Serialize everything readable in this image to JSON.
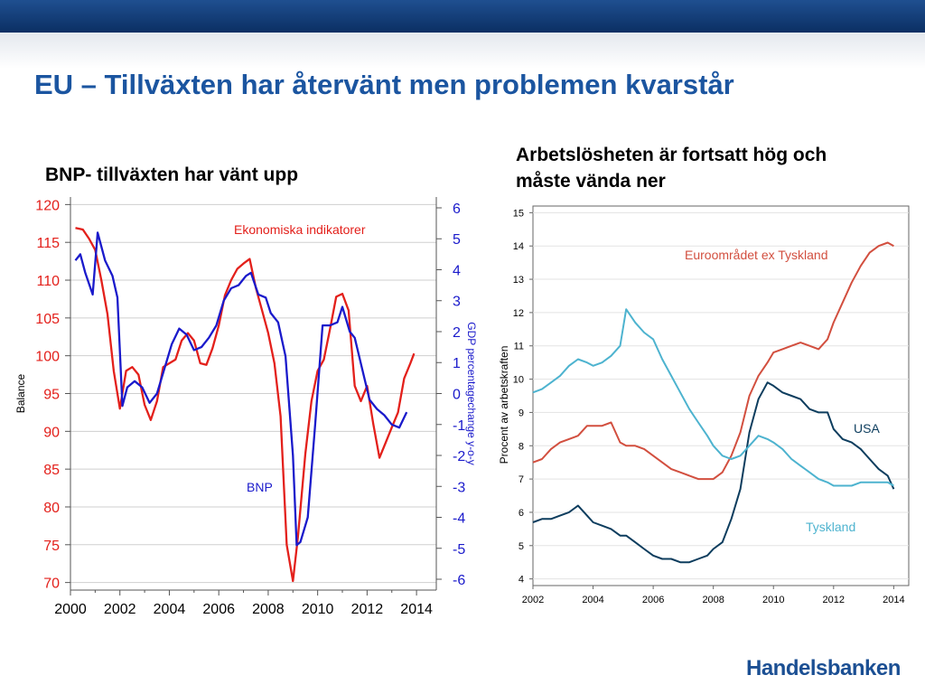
{
  "slide": {
    "title": "EU – Tillväxten har återvänt men problemen kvarstår",
    "logo": "Handelsbanken",
    "colors": {
      "header_bar": "#0b2f63",
      "title": "#1b55a0"
    }
  },
  "left": {
    "subtitle": "BNP- tillväxten har vänt upp"
  },
  "right": {
    "subtitle_lines": [
      "Arbetslösheten är fortsatt hög och",
      "måste vända ner"
    ]
  },
  "chart_data": [
    {
      "type": "line",
      "title": "BNP- tillväxten har vänt upp",
      "ylabel": "Balance",
      "y2label": "GDP percentagechange y-o-y",
      "xlim": [
        2000,
        2014.8
      ],
      "ylim": [
        69,
        121
      ],
      "y2lim": [
        -6.35,
        6.35
      ],
      "x_ticks": [
        "2000",
        "2002",
        "2004",
        "2006",
        "2008",
        "2010",
        "2012",
        "2014"
      ],
      "y_ticks": [
        "120",
        "115",
        "110",
        "105",
        "100",
        "95",
        "90",
        "85",
        "80",
        "75",
        "70"
      ],
      "y2_ticks": [
        "6",
        "5",
        "4",
        "3",
        "2",
        "1",
        "0",
        "-1",
        "-2",
        "-3",
        "-4",
        "-5",
        "-6"
      ],
      "grid": true,
      "series": [
        {
          "name": "Ekonomiska indikatorer",
          "axis": "left",
          "color": "#e3201b",
          "x": [
            2000.2,
            2000.5,
            2000.75,
            2001.0,
            2001.25,
            2001.5,
            2001.75,
            2002.0,
            2002.25,
            2002.5,
            2002.75,
            2003.0,
            2003.25,
            2003.5,
            2003.75,
            2004.0,
            2004.25,
            2004.5,
            2004.75,
            2005.0,
            2005.25,
            2005.5,
            2005.75,
            2006.0,
            2006.25,
            2006.5,
            2006.75,
            2007.0,
            2007.25,
            2007.5,
            2007.75,
            2008.0,
            2008.25,
            2008.5,
            2008.75,
            2009.0,
            2009.2,
            2009.5,
            2009.75,
            2010.0,
            2010.25,
            2010.5,
            2010.75,
            2011.0,
            2011.25,
            2011.5,
            2011.75,
            2012.0,
            2012.25,
            2012.5,
            2012.75,
            2013.0,
            2013.25,
            2013.5,
            2013.75,
            2013.9
          ],
          "values": [
            116.9,
            116.7,
            115.5,
            114,
            110,
            105.5,
            98,
            93,
            98,
            98.5,
            97.5,
            93.5,
            91.5,
            94,
            98.5,
            99,
            99.5,
            102,
            103,
            102,
            99,
            98.8,
            101,
            104,
            108,
            110,
            111.5,
            112.2,
            112.8,
            109,
            106,
            103,
            99,
            92,
            75,
            70.2,
            76,
            87,
            94,
            98,
            99.5,
            103.5,
            107.8,
            108.2,
            106,
            96,
            94,
            96,
            91,
            86.5,
            88.5,
            90.5,
            92.5,
            97,
            99,
            100.3
          ]
        },
        {
          "name": "BNP",
          "axis": "right",
          "color": "#1a1acb",
          "x": [
            2000.2,
            2000.4,
            2000.6,
            2000.9,
            2001.1,
            2001.4,
            2001.7,
            2001.9,
            2002.1,
            2002.3,
            2002.6,
            2002.9,
            2003.2,
            2003.5,
            2003.8,
            2004.1,
            2004.4,
            2004.7,
            2005.0,
            2005.3,
            2005.6,
            2005.9,
            2006.2,
            2006.5,
            2006.8,
            2007.1,
            2007.3,
            2007.6,
            2007.9,
            2008.1,
            2008.4,
            2008.7,
            2009.0,
            2009.15,
            2009.3,
            2009.6,
            2009.9,
            2010.2,
            2010.5,
            2010.8,
            2011.0,
            2011.3,
            2011.5,
            2011.8,
            2012.1,
            2012.4,
            2012.7,
            2013.0,
            2013.3,
            2013.6
          ],
          "values": [
            4.3,
            4.5,
            3.9,
            3.2,
            5.2,
            4.3,
            3.8,
            3.1,
            -0.4,
            0.2,
            0.4,
            0.2,
            -0.3,
            0.0,
            0.8,
            1.6,
            2.1,
            1.9,
            1.4,
            1.5,
            1.8,
            2.2,
            3.0,
            3.4,
            3.5,
            3.8,
            3.9,
            3.2,
            3.1,
            2.6,
            2.3,
            1.2,
            -2.0,
            -4.9,
            -4.8,
            -4.0,
            -1.0,
            2.2,
            2.2,
            2.3,
            2.8,
            2.0,
            1.8,
            0.8,
            -0.2,
            -0.5,
            -0.7,
            -1.0,
            -1.1,
            -0.6
          ]
        }
      ]
    },
    {
      "type": "line",
      "title": "Arbetslösheten är fortsatt hög och måste vända ner",
      "ylabel": "Procent av arbetskraften",
      "xlim": [
        2002,
        2014.5
      ],
      "ylim": [
        3.8,
        15.2
      ],
      "x_ticks": [
        "2002",
        "2004",
        "2006",
        "2008",
        "2010",
        "2012",
        "2014"
      ],
      "y_ticks": [
        "15",
        "14",
        "13",
        "12",
        "11",
        "10",
        "9",
        "8",
        "7",
        "6",
        "5",
        "4"
      ],
      "grid": true,
      "series": [
        {
          "name": "Euroområdet ex Tyskland",
          "color": "#d24f3f",
          "x": [
            2002.0,
            2002.3,
            2002.6,
            2002.9,
            2003.2,
            2003.5,
            2003.8,
            2004.0,
            2004.3,
            2004.6,
            2004.9,
            2005.1,
            2005.4,
            2005.7,
            2006.0,
            2006.3,
            2006.6,
            2006.9,
            2007.2,
            2007.5,
            2007.8,
            2008.0,
            2008.3,
            2008.6,
            2008.9,
            2009.2,
            2009.5,
            2009.8,
            2010.0,
            2010.3,
            2010.6,
            2010.9,
            2011.2,
            2011.5,
            2011.8,
            2012.0,
            2012.3,
            2012.6,
            2012.9,
            2013.2,
            2013.5,
            2013.8,
            2014.0
          ],
          "values": [
            7.5,
            7.6,
            7.9,
            8.1,
            8.2,
            8.3,
            8.6,
            8.6,
            8.6,
            8.7,
            8.1,
            8.0,
            8.0,
            7.9,
            7.7,
            7.5,
            7.3,
            7.2,
            7.1,
            7.0,
            7.0,
            7.0,
            7.2,
            7.7,
            8.4,
            9.5,
            10.1,
            10.5,
            10.8,
            10.9,
            11.0,
            11.1,
            11.0,
            10.9,
            11.2,
            11.7,
            12.3,
            12.9,
            13.4,
            13.8,
            14.0,
            14.1,
            14.0
          ]
        },
        {
          "name": "USA",
          "color": "#0d3d5e",
          "x": [
            2002.0,
            2002.3,
            2002.6,
            2002.9,
            2003.2,
            2003.5,
            2003.8,
            2004.0,
            2004.3,
            2004.6,
            2004.9,
            2005.1,
            2005.4,
            2005.7,
            2006.0,
            2006.3,
            2006.6,
            2006.9,
            2007.2,
            2007.5,
            2007.8,
            2008.0,
            2008.3,
            2008.6,
            2008.9,
            2009.2,
            2009.5,
            2009.8,
            2010.0,
            2010.3,
            2010.6,
            2010.9,
            2011.2,
            2011.5,
            2011.8,
            2012.0,
            2012.3,
            2012.6,
            2012.9,
            2013.2,
            2013.5,
            2013.8,
            2014.0
          ],
          "values": [
            5.7,
            5.8,
            5.8,
            5.9,
            6.0,
            6.2,
            5.9,
            5.7,
            5.6,
            5.5,
            5.3,
            5.3,
            5.1,
            4.9,
            4.7,
            4.6,
            4.6,
            4.5,
            4.5,
            4.6,
            4.7,
            4.9,
            5.1,
            5.8,
            6.7,
            8.4,
            9.4,
            9.9,
            9.8,
            9.6,
            9.5,
            9.4,
            9.1,
            9.0,
            9.0,
            8.5,
            8.2,
            8.1,
            7.9,
            7.6,
            7.3,
            7.1,
            6.7
          ]
        },
        {
          "name": "Tyskland",
          "color": "#4db3cf",
          "x": [
            2002.0,
            2002.3,
            2002.6,
            2002.9,
            2003.2,
            2003.5,
            2003.8,
            2004.0,
            2004.3,
            2004.6,
            2004.9,
            2005.1,
            2005.4,
            2005.7,
            2006.0,
            2006.3,
            2006.6,
            2006.9,
            2007.2,
            2007.5,
            2007.8,
            2008.0,
            2008.3,
            2008.6,
            2008.9,
            2009.2,
            2009.5,
            2009.8,
            2010.0,
            2010.3,
            2010.6,
            2010.9,
            2011.2,
            2011.5,
            2011.8,
            2012.0,
            2012.3,
            2012.6,
            2012.9,
            2013.2,
            2013.5,
            2013.8,
            2014.0
          ],
          "values": [
            9.6,
            9.7,
            9.9,
            10.1,
            10.4,
            10.6,
            10.5,
            10.4,
            10.5,
            10.7,
            11.0,
            12.1,
            11.7,
            11.4,
            11.2,
            10.6,
            10.1,
            9.6,
            9.1,
            8.7,
            8.3,
            8.0,
            7.7,
            7.6,
            7.7,
            8.0,
            8.3,
            8.2,
            8.1,
            7.9,
            7.6,
            7.4,
            7.2,
            7.0,
            6.9,
            6.8,
            6.8,
            6.8,
            6.9,
            6.9,
            6.9,
            6.9,
            6.8
          ]
        }
      ]
    }
  ]
}
